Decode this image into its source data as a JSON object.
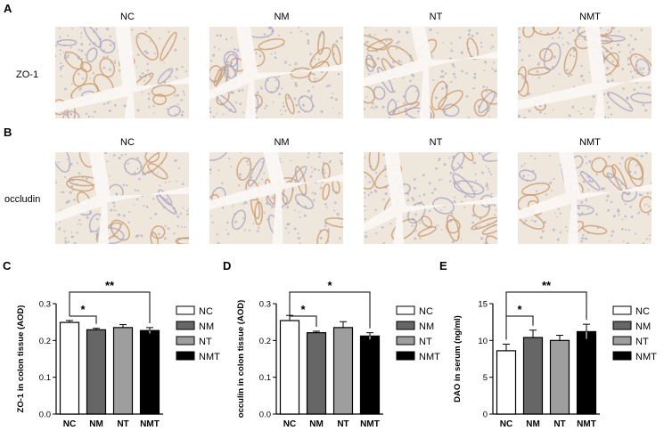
{
  "figure": {
    "panel_a": {
      "letter": "A",
      "columns": [
        "NC",
        "NM",
        "NT",
        "NMT"
      ],
      "row_label": "ZO-1"
    },
    "panel_b": {
      "letter": "B",
      "columns": [
        "NC",
        "NM",
        "NT",
        "NMT"
      ],
      "row_label": "occludin"
    }
  },
  "colors": {
    "tissue_bg": "#efe6dc",
    "stain_brown": "#c99a6e",
    "stain_blue": "#a9a6c4",
    "lumen": "#faf7f3",
    "bar_nc": "#ffffff",
    "bar_nm": "#666666",
    "bar_nt": "#9e9e9e",
    "bar_nmt": "#000000"
  },
  "chart_data": [
    {
      "letter": "C",
      "type": "bar",
      "categories": [
        "NC",
        "NM",
        "NT",
        "NMT"
      ],
      "values": [
        0.249,
        0.229,
        0.235,
        0.227
      ],
      "errors": [
        0.005,
        0.004,
        0.008,
        0.008
      ],
      "ylabel": "ZO-1 in colon tissue (AOD)",
      "ylim": [
        0,
        0.3
      ],
      "yticks": [
        "0.0",
        "0.1",
        "0.2",
        "0.3"
      ],
      "ytick_values": [
        0,
        0.1,
        0.2,
        0.3
      ],
      "legend": [
        "NC",
        "NM",
        "NT",
        "NMT"
      ],
      "significance": [
        {
          "from": 0,
          "to": 1,
          "label": "*"
        },
        {
          "from": 0,
          "to": 3,
          "label": "**"
        }
      ]
    },
    {
      "letter": "D",
      "type": "bar",
      "categories": [
        "NC",
        "NM",
        "NT",
        "NMT"
      ],
      "values": [
        0.254,
        0.221,
        0.235,
        0.212
      ],
      "errors": [
        0.014,
        0.004,
        0.016,
        0.009
      ],
      "ylabel": "occulin in colon tissue (AOD)",
      "ylim": [
        0,
        0.3
      ],
      "yticks": [
        "0.0",
        "0.1",
        "0.2",
        "0.3"
      ],
      "ytick_values": [
        0,
        0.1,
        0.2,
        0.3
      ],
      "legend": [
        "NC",
        "NM",
        "NT",
        "NMT"
      ],
      "significance": [
        {
          "from": 0,
          "to": 1,
          "label": "*"
        },
        {
          "from": 0,
          "to": 3,
          "label": "*"
        }
      ]
    },
    {
      "letter": "E",
      "type": "bar",
      "categories": [
        "NC",
        "NM",
        "NT",
        "NMT"
      ],
      "values": [
        8.6,
        10.4,
        10.0,
        11.2
      ],
      "errors": [
        0.9,
        1.0,
        0.7,
        1.0
      ],
      "ylabel": "DAO in serum (ng/ml)",
      "ylim": [
        0,
        15
      ],
      "yticks": [
        "0",
        "5",
        "10",
        "15"
      ],
      "ytick_values": [
        0,
        5,
        10,
        15
      ],
      "legend": [
        "NC",
        "NM",
        "NT",
        "NMT"
      ],
      "significance": [
        {
          "from": 0,
          "to": 1,
          "label": "*"
        },
        {
          "from": 0,
          "to": 3,
          "label": "**"
        }
      ]
    }
  ]
}
